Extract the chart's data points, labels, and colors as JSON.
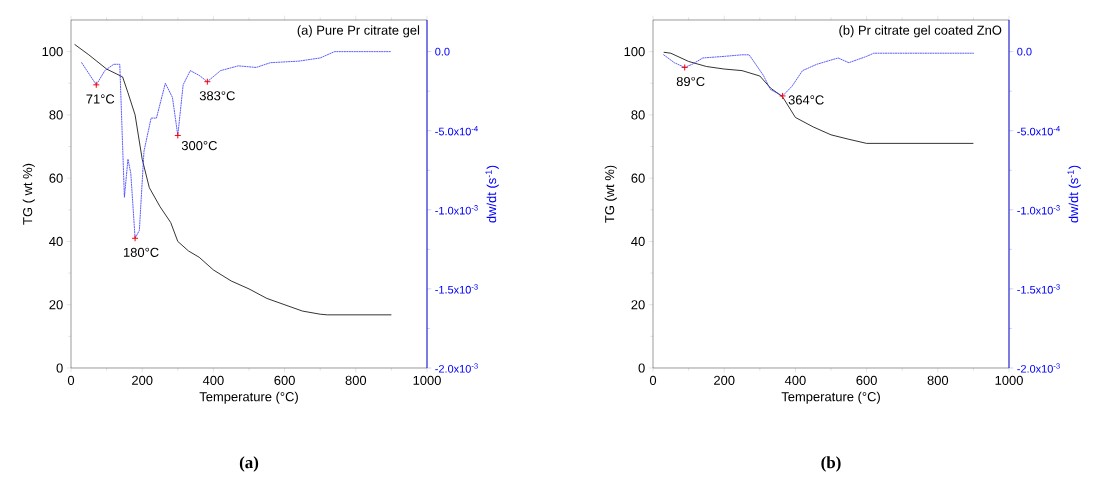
{
  "chart_data": [
    {
      "type": "line",
      "title": "(a) Pure Pr citrate gel",
      "xlabel": "Temperature (°C)",
      "ylabel": "TG ( wt %)",
      "y2label": "dw/dt (s$^{-1}$)",
      "xlim": [
        0,
        1000
      ],
      "xticks": [
        0,
        200,
        400,
        600,
        800,
        1000
      ],
      "ylim": [
        0,
        110
      ],
      "yticks": [
        0,
        20,
        40,
        60,
        80,
        100
      ],
      "y2lim": [
        -0.002,
        0.0002
      ],
      "y2ticks": [
        {
          "value": 0,
          "label": "0.0"
        },
        {
          "value": -0.0005,
          "label": "-5.0x10$^{-4}$"
        },
        {
          "value": -0.001,
          "label": "-1.0x10$^{-3}$"
        },
        {
          "value": -0.0015,
          "label": "-1.5x10$^{-3}$"
        },
        {
          "value": -0.002,
          "label": "-2.0x10$^{-3}$"
        }
      ],
      "series": [
        {
          "color": "#000000",
          "line_style": "solid",
          "x": [
            10,
            50,
            100,
            145,
            160,
            180,
            200,
            220,
            250,
            280,
            300,
            330,
            360,
            400,
            450,
            500,
            550,
            600,
            650,
            700,
            720,
            900
          ],
          "values": [
            102.3,
            99,
            94.5,
            92,
            87,
            80,
            66,
            57,
            51,
            46,
            40,
            37,
            35,
            31,
            27.5,
            25,
            22,
            20,
            18,
            17,
            16.8,
            16.8
          ]
        },
        {
          "color": "#3333ff",
          "axis": "y2",
          "line_style": "dashed",
          "x": [
            30,
            71,
            95,
            120,
            137,
            150,
            160,
            168,
            180,
            192,
            205,
            225,
            240,
            265,
            285,
            300,
            315,
            335,
            360,
            383,
            420,
            470,
            520,
            560,
            640,
            700,
            740,
            900
          ],
          "values": [
            -7e-05,
            -0.00021,
            -0.00012,
            -8e-05,
            -8e-05,
            -0.00092,
            -0.00068,
            -0.00077,
            -0.00118,
            -0.00113,
            -0.00063,
            -0.00042,
            -0.00042,
            -0.0002,
            -0.00029,
            -0.00053,
            -0.00021,
            -0.00012,
            -0.00015,
            -0.00019,
            -0.00012,
            -9e-05,
            -0.0001,
            -7e-05,
            -6e-05,
            -4e-05,
            0,
            0
          ]
        },
        {
          "type": "scatter",
          "axis": "y2",
          "color": "#ff0000",
          "marker": "cross",
          "x": [
            71,
            180,
            300,
            383
          ],
          "values": [
            -0.00021,
            -0.00118,
            -0.00053,
            -0.00019
          ]
        }
      ],
      "annotations": [
        "(a)",
        "71°C",
        "180°C",
        "300°C",
        "383°C"
      ]
    },
    {
      "type": "line",
      "title": "(b) Pr citrate gel coated ZnO",
      "xlabel": "Temperature (°C)",
      "ylabel": "TG (wt %)",
      "y2label": "dw/dt (s$^{-1}$)",
      "xlim": [
        0,
        1000
      ],
      "xticks": [
        0,
        200,
        400,
        600,
        800,
        1000
      ],
      "ylim": [
        0,
        110
      ],
      "yticks": [
        0,
        20,
        40,
        60,
        80,
        100
      ],
      "y2lim": [
        -0.002,
        0.0002
      ],
      "y2ticks": [
        {
          "value": 0,
          "label": "0.0"
        },
        {
          "value": -0.0005,
          "label": "-5.0x10$^{-4}$"
        },
        {
          "value": -0.001,
          "label": "-1.0x10$^{-3}$"
        },
        {
          "value": -0.0015,
          "label": "-1.5x10$^{-3}$"
        },
        {
          "value": -0.002,
          "label": "-2.0x10$^{-3}$"
        }
      ],
      "series": [
        {
          "color": "#000000",
          "line_style": "solid",
          "x": [
            30,
            50,
            100,
            150,
            200,
            250,
            300,
            330,
            364,
            400,
            450,
            500,
            550,
            600,
            900
          ],
          "values": [
            99.8,
            99.5,
            96.9,
            95.3,
            94.5,
            94,
            92.3,
            88.5,
            85.7,
            79.2,
            76.2,
            73.7,
            72.3,
            71,
            71
          ]
        },
        {
          "color": "#3333ff",
          "axis": "y2",
          "line_style": "dashed",
          "x": [
            30,
            60,
            89,
            110,
            140,
            200,
            250,
            270,
            310,
            330,
            364,
            390,
            420,
            460,
            520,
            550,
            600,
            620,
            900
          ],
          "values": [
            -2e-05,
            -7e-05,
            -0.0001,
            -8e-05,
            -4e-05,
            -3e-05,
            -2e-05,
            -2e-05,
            -0.00015,
            -0.00024,
            -0.00028,
            -0.00022,
            -0.00012,
            -8e-05,
            -4e-05,
            -7e-05,
            -3e-05,
            -1e-05,
            -1e-05
          ]
        },
        {
          "type": "scatter",
          "axis": "y2",
          "color": "#ff0000",
          "marker": "cross",
          "x": [
            89,
            364
          ],
          "values": [
            -0.0001,
            -0.00028
          ]
        }
      ],
      "annotations": [
        "(b)",
        "89°C",
        "364°C"
      ]
    }
  ]
}
